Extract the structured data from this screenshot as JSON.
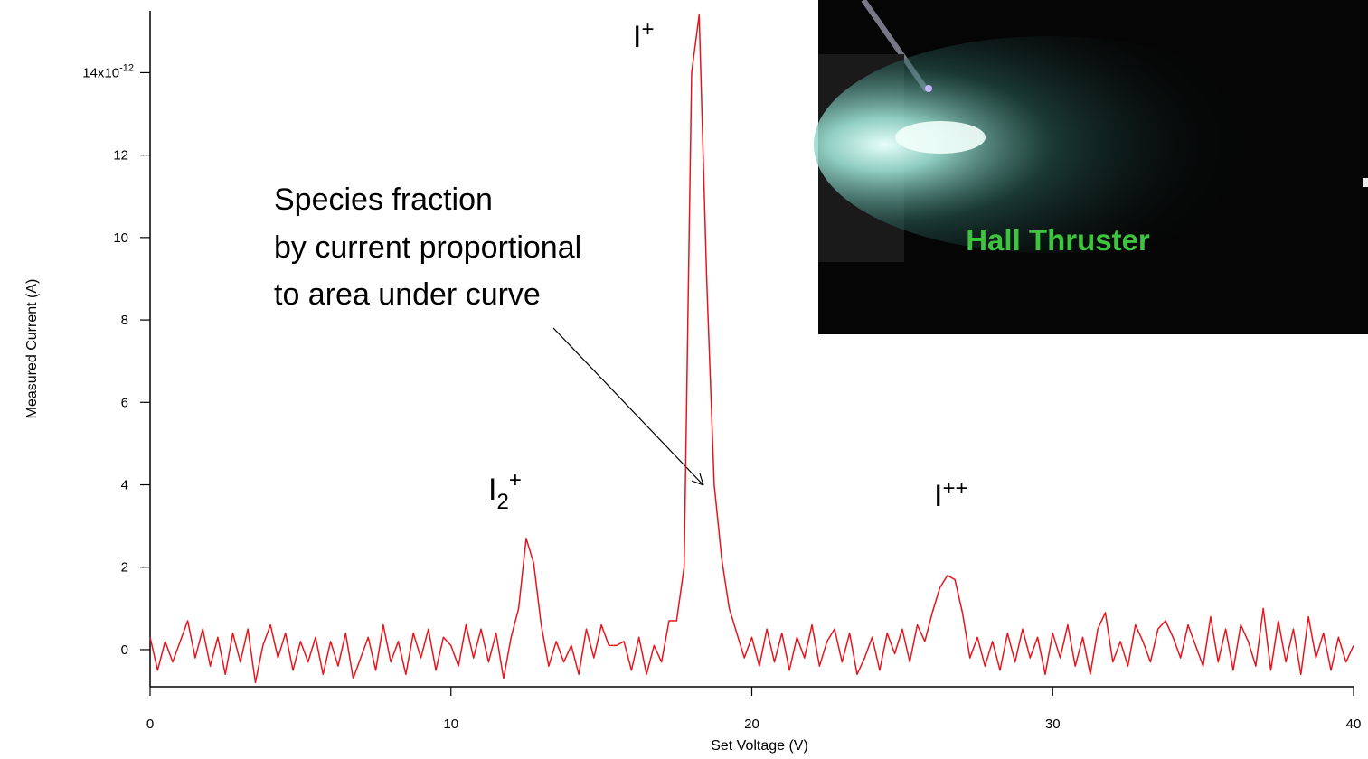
{
  "chart_data": {
    "type": "line",
    "xlabel": "Set Voltage (V)",
    "ylabel": "Measured Current (A)",
    "ytick_exponent": "-12",
    "xlim": [
      0,
      40
    ],
    "ylim": [
      -0.9,
      15.5
    ],
    "xticks": [
      0,
      10,
      20,
      30,
      40
    ],
    "yticks": [
      0,
      2,
      4,
      6,
      8,
      10,
      12,
      {
        "value": 14,
        "label": "14x10"
      }
    ],
    "annotation": [
      "Species fraction",
      "by current proportional",
      "to area under curve"
    ],
    "peak_labels": [
      {
        "base": "I",
        "sup": "+"
      },
      {
        "base": "I",
        "sub": "2",
        "sup": "+"
      },
      {
        "base": "I",
        "sup": "++"
      }
    ],
    "inset_label": "Hall Thruster",
    "series": [
      {
        "color": "#e8141c",
        "x": [
          0,
          0.25,
          0.5,
          0.75,
          1,
          1.25,
          1.5,
          1.75,
          2,
          2.25,
          2.5,
          2.75,
          3,
          3.25,
          3.5,
          3.75,
          4,
          4.25,
          4.5,
          4.75,
          5,
          5.25,
          5.5,
          5.75,
          6,
          6.25,
          6.5,
          6.75,
          7,
          7.25,
          7.5,
          7.75,
          8,
          8.25,
          8.5,
          8.75,
          9,
          9.25,
          9.5,
          9.75,
          10,
          10.25,
          10.5,
          10.75,
          11,
          11.25,
          11.5,
          11.75,
          12,
          12.25,
          12.5,
          12.75,
          13,
          13.25,
          13.5,
          13.75,
          14,
          14.25,
          14.5,
          14.75,
          15,
          15.25,
          15.5,
          15.75,
          16,
          16.25,
          16.5,
          16.75,
          17,
          17.25,
          17.5,
          17.75,
          18,
          18.25,
          18.5,
          18.75,
          19,
          19.25,
          19.5,
          19.75,
          20,
          20.25,
          20.5,
          20.75,
          21,
          21.25,
          21.5,
          21.75,
          22,
          22.25,
          22.5,
          22.75,
          23,
          23.25,
          23.5,
          23.75,
          24,
          24.25,
          24.5,
          24.75,
          25,
          25.25,
          25.5,
          25.75,
          26,
          26.25,
          26.5,
          26.75,
          27,
          27.25,
          27.5,
          27.75,
          28,
          28.25,
          28.5,
          28.75,
          29,
          29.25,
          29.5,
          29.75,
          30,
          30.25,
          30.5,
          30.75,
          31,
          31.25,
          31.5,
          31.75,
          32,
          32.25,
          32.5,
          32.75,
          33,
          33.25,
          33.5,
          33.75,
          34,
          34.25,
          34.5,
          34.75,
          35,
          35.25,
          35.5,
          35.75,
          36,
          36.25,
          36.5,
          36.75,
          37,
          37.25,
          37.5,
          37.75,
          38,
          38.25,
          38.5,
          38.75,
          39,
          39.25,
          39.5,
          39.75,
          40
        ],
        "values": [
          0.3,
          -0.5,
          0.2,
          -0.3,
          0.2,
          0.7,
          -0.2,
          0.5,
          -0.4,
          0.3,
          -0.6,
          0.4,
          -0.3,
          0.5,
          -0.8,
          0.1,
          0.6,
          -0.2,
          0.4,
          -0.5,
          0.2,
          -0.3,
          0.3,
          -0.6,
          0.2,
          -0.4,
          0.4,
          -0.7,
          -0.2,
          0.3,
          -0.5,
          0.6,
          -0.3,
          0.2,
          -0.6,
          0.4,
          -0.2,
          0.5,
          -0.5,
          0.3,
          0.1,
          -0.4,
          0.6,
          -0.2,
          0.5,
          -0.3,
          0.4,
          -0.7,
          0.3,
          1.0,
          2.7,
          2.1,
          0.6,
          -0.4,
          0.2,
          -0.3,
          0.1,
          -0.6,
          0.5,
          -0.2,
          0.6,
          0.1,
          0.1,
          0.2,
          -0.5,
          0.3,
          -0.6,
          0.1,
          -0.3,
          0.7,
          0.7,
          2.0,
          14.0,
          15.4,
          9.0,
          4.0,
          2.2,
          1.0,
          0.4,
          -0.2,
          0.3,
          -0.4,
          0.5,
          -0.3,
          0.4,
          -0.5,
          0.3,
          -0.2,
          0.6,
          -0.4,
          0.2,
          0.5,
          -0.3,
          0.4,
          -0.6,
          -0.2,
          0.3,
          -0.5,
          0.4,
          -0.1,
          0.5,
          -0.3,
          0.6,
          0.2,
          0.9,
          1.5,
          1.8,
          1.7,
          0.9,
          -0.2,
          0.3,
          -0.4,
          0.2,
          -0.5,
          0.4,
          -0.3,
          0.5,
          -0.2,
          0.3,
          -0.6,
          0.4,
          -0.2,
          0.6,
          -0.4,
          0.3,
          -0.6,
          0.5,
          0.9,
          -0.3,
          0.2,
          -0.4,
          0.6,
          0.2,
          -0.3,
          0.5,
          0.7,
          0.3,
          -0.2,
          0.6,
          0.1,
          -0.4,
          0.8,
          -0.3,
          0.5,
          -0.5,
          0.6,
          0.2,
          -0.4,
          1.0,
          -0.5,
          0.7,
          -0.3,
          0.5,
          -0.6,
          0.8,
          -0.2,
          0.4,
          -0.5,
          0.3,
          -0.3,
          0.1
        ]
      }
    ]
  }
}
